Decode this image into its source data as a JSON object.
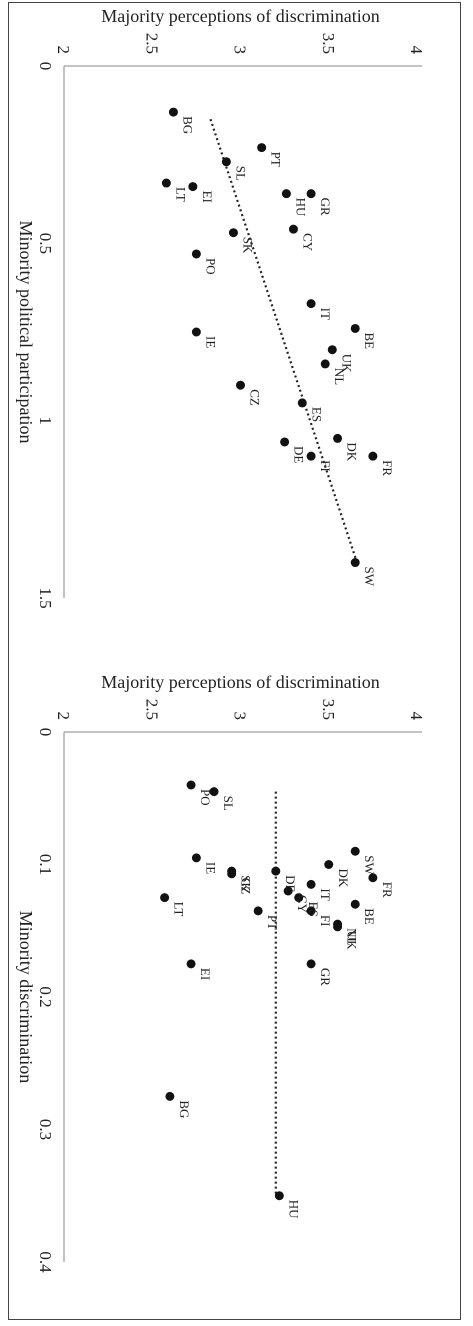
{
  "chart_data": [
    {
      "type": "scatter",
      "xlabel": "Minority political participation",
      "ylabel": "Majority perceptions of discrimination",
      "xlim": [
        0,
        1.5
      ],
      "ylim": [
        2,
        4
      ],
      "xticks": [
        "0",
        "0.5",
        "1",
        "1.5"
      ],
      "yticks": [
        "2",
        "2.5",
        "3",
        "3.5",
        "4"
      ],
      "points": [
        {
          "label": "SW",
          "x": 1.4,
          "y": 3.65
        },
        {
          "label": "FR",
          "x": 1.1,
          "y": 3.75
        },
        {
          "label": "DK",
          "x": 1.05,
          "y": 3.55
        },
        {
          "label": "FI",
          "x": 1.1,
          "y": 3.4
        },
        {
          "label": "DE",
          "x": 1.06,
          "y": 3.25
        },
        {
          "label": "ES",
          "x": 0.95,
          "y": 3.35
        },
        {
          "label": "CZ",
          "x": 0.9,
          "y": 3.0
        },
        {
          "label": "NL",
          "x": 0.84,
          "y": 3.48
        },
        {
          "label": "UK",
          "x": 0.8,
          "y": 3.52
        },
        {
          "label": "BE",
          "x": 0.74,
          "y": 3.65
        },
        {
          "label": "IE",
          "x": 0.75,
          "y": 2.75
        },
        {
          "label": "IT",
          "x": 0.67,
          "y": 3.4
        },
        {
          "label": "PO",
          "x": 0.53,
          "y": 2.75
        },
        {
          "label": "SK",
          "x": 0.47,
          "y": 2.96
        },
        {
          "label": "CY",
          "x": 0.46,
          "y": 3.3
        },
        {
          "label": "GR",
          "x": 0.36,
          "y": 3.4
        },
        {
          "label": "HU",
          "x": 0.36,
          "y": 3.26
        },
        {
          "label": "EI",
          "x": 0.34,
          "y": 2.73
        },
        {
          "label": "LT",
          "x": 0.33,
          "y": 2.58
        },
        {
          "label": "SL",
          "x": 0.27,
          "y": 2.92
        },
        {
          "label": "PT",
          "x": 0.23,
          "y": 3.12
        },
        {
          "label": "BG",
          "x": 0.13,
          "y": 2.62
        }
      ],
      "trendline": {
        "x": [
          0.15,
          1.4
        ],
        "y": [
          2.83,
          3.66
        ]
      }
    },
    {
      "type": "scatter",
      "xlabel": "Minority discrimination",
      "ylabel": "Majority perceptions of  discrimination",
      "xlim": [
        0,
        0.4
      ],
      "ylim": [
        2,
        4
      ],
      "xticks": [
        "0",
        "0.1",
        "0.2",
        "0.3",
        "0.4"
      ],
      "yticks": [
        "2",
        "2.5",
        "3",
        "3.5",
        "4"
      ],
      "points": [
        {
          "label": "FR",
          "x": 0.11,
          "y": 3.75
        },
        {
          "label": "SW",
          "x": 0.09,
          "y": 3.65
        },
        {
          "label": "BE",
          "x": 0.13,
          "y": 3.65
        },
        {
          "label": "NL",
          "x": 0.145,
          "y": 3.55
        },
        {
          "label": "UK",
          "x": 0.147,
          "y": 3.55
        },
        {
          "label": "DK",
          "x": 0.1,
          "y": 3.5
        },
        {
          "label": "FI",
          "x": 0.135,
          "y": 3.4
        },
        {
          "label": "IT",
          "x": 0.115,
          "y": 3.4
        },
        {
          "label": "ES",
          "x": 0.125,
          "y": 3.33
        },
        {
          "label": "CY",
          "x": 0.12,
          "y": 3.27
        },
        {
          "label": "DE",
          "x": 0.105,
          "y": 3.2
        },
        {
          "label": "GR",
          "x": 0.175,
          "y": 3.4
        },
        {
          "label": "HU",
          "x": 0.35,
          "y": 3.22
        },
        {
          "label": "PT",
          "x": 0.135,
          "y": 3.1
        },
        {
          "label": "SK",
          "x": 0.105,
          "y": 2.95
        },
        {
          "label": "CZ",
          "x": 0.107,
          "y": 2.95
        },
        {
          "label": "IE",
          "x": 0.095,
          "y": 2.75
        },
        {
          "label": "EI",
          "x": 0.175,
          "y": 2.72
        },
        {
          "label": "LT",
          "x": 0.125,
          "y": 2.57
        },
        {
          "label": "BG",
          "x": 0.275,
          "y": 2.6
        },
        {
          "label": "SL",
          "x": 0.045,
          "y": 2.85
        },
        {
          "label": "PO",
          "x": 0.04,
          "y": 2.72
        }
      ],
      "trendline": {
        "x": [
          0.045,
          0.35
        ],
        "y": [
          3.2,
          3.2
        ]
      }
    }
  ]
}
